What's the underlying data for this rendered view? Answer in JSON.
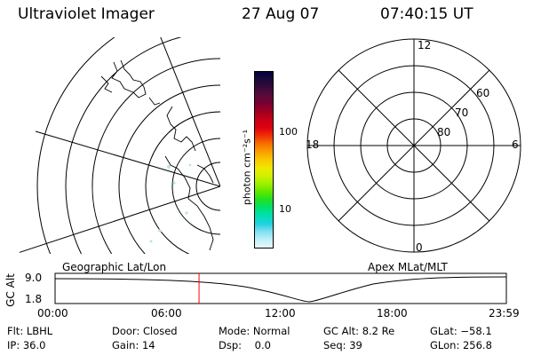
{
  "header": {
    "instrument": "Ultraviolet Imager",
    "date": "27 Aug 07",
    "time": "07:40:15 UT"
  },
  "colorbar": {
    "unit_label": "photon cm⁻²s⁻¹",
    "ticks": [
      "100",
      "10"
    ],
    "colors": [
      "#000040",
      "#1a0a3a",
      "#3a0a3a",
      "#5a0a3a",
      "#7a0030",
      "#a00020",
      "#c80018",
      "#e00010",
      "#f03008",
      "#f87000",
      "#f8a000",
      "#f8c800",
      "#f0e800",
      "#d0f000",
      "#a0f000",
      "#60e800",
      "#20e020",
      "#00e070",
      "#00e0b0",
      "#20d0e0",
      "#80e0f0",
      "#c0f0f8",
      "#e8f8fc"
    ]
  },
  "left_map": {
    "label": "Geographic Lat/Lon"
  },
  "polar_plot": {
    "label": "Apex MLat/MLT",
    "mlt_labels": {
      "top": "12",
      "bottom": "0",
      "left": "18",
      "right": "6"
    },
    "lat_labels": [
      "60",
      "70",
      "80"
    ]
  },
  "timeline": {
    "y_title": "GC Alt",
    "y_ticks": [
      "9.0",
      "1.8"
    ],
    "x_ticks": [
      "00:00",
      "06:00",
      "12:00",
      "18:00",
      "23:59"
    ],
    "marker_fraction": 0.319,
    "line_color": "#000000",
    "marker_color": "#ff0000"
  },
  "status": {
    "row1": [
      {
        "key": "Flt:",
        "val": "LBHL"
      },
      {
        "key": "Door:",
        "val": "Closed"
      },
      {
        "key": "Mode:",
        "val": "Normal"
      },
      {
        "key": "GC Alt:",
        "val": "8.2 Re"
      },
      {
        "key": "GLat:",
        "val": "−58.1"
      }
    ],
    "row2": [
      {
        "key": "IP:",
        "val": "36.0"
      },
      {
        "key": "Gain:",
        "val": "14"
      },
      {
        "key": "Dsp:",
        "val": "0.0"
      },
      {
        "key": "Seq:",
        "val": "39"
      },
      {
        "key": "GLon:",
        "val": "256.8"
      }
    ]
  }
}
